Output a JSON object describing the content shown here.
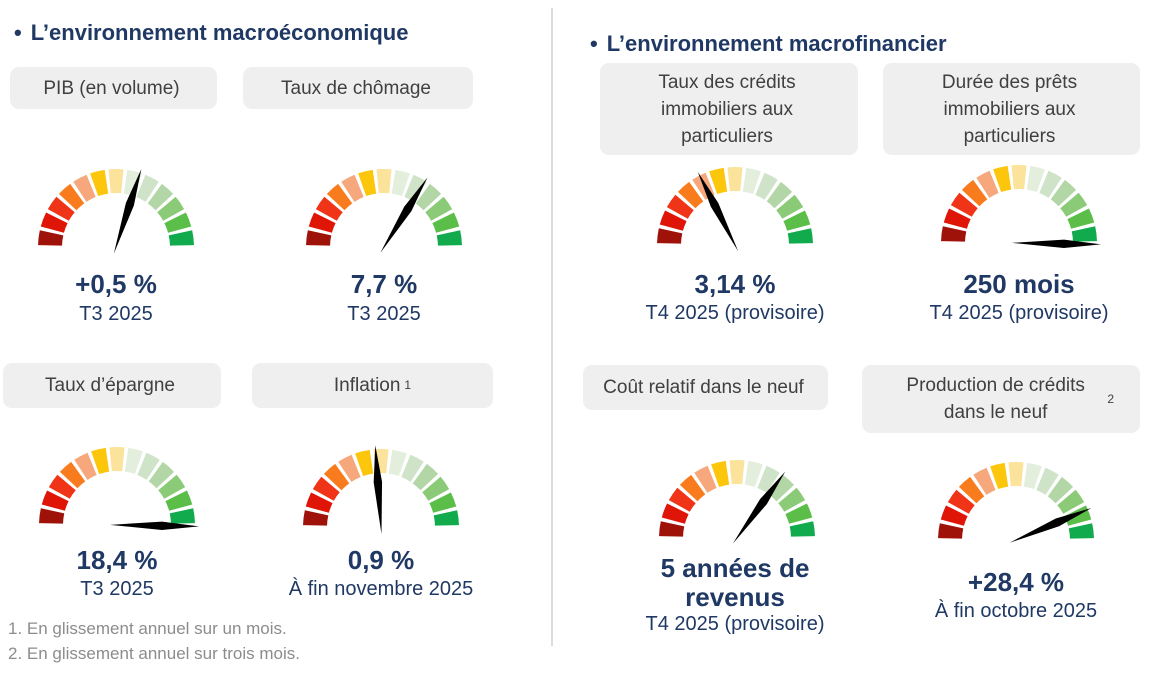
{
  "sections": [
    {
      "bullet": "•",
      "title": "L’environnement macroéconomique",
      "gauges": [
        {
          "label": "PIB (en volume)",
          "value": "+0,5 %",
          "period": "T3 2025",
          "needle_deg": 18
        },
        {
          "label": "Taux de chômage",
          "value": "7,7 %",
          "period": "T3 2025",
          "needle_deg": 32
        },
        {
          "label": "Taux d’épargne",
          "value": "18,4 %",
          "period": "T3 2025",
          "needle_deg": 91
        },
        {
          "label": "Inflation",
          "label_sup": "1",
          "value": "0,9 %",
          "period": "À fin novembre 2025",
          "needle_deg": -4
        }
      ]
    },
    {
      "bullet": "•",
      "title": "L’environnement macrofinancier",
      "gauges": [
        {
          "label": "Taux des crédits immobiliers aux particuliers",
          "value": "3,14 %",
          "period": "T4 2025 (provisoire)",
          "needle_deg": -27
        },
        {
          "label": "Durée des prêts immobiliers aux particuliers",
          "value": "250 mois",
          "period": "T4 2025 (provisoire)",
          "needle_deg": 91
        },
        {
          "label": "Coût relatif dans le neuf",
          "value": "5 années de revenus",
          "period": "T4 2025 (provisoire)",
          "needle_deg": 36
        },
        {
          "label": "Production de crédits dans le neuf",
          "label_sup": "2",
          "value": "+28,4 %",
          "period": "À fin octobre 2025",
          "needle_deg": 67
        }
      ]
    }
  ],
  "footnotes": [
    "1. En glissement annuel sur un mois.",
    "2. En glissement annuel sur trois mois."
  ],
  "gauge_palette": [
    "#9f1209",
    "#df1607",
    "#f03417",
    "#f87c1d",
    "#f6a87c",
    "#fcc60d",
    "#fbe39c",
    "#e3eedd",
    "#cfe3c8",
    "#b3d6a6",
    "#8bca77",
    "#5abe49",
    "#11aa4d"
  ],
  "colors": {
    "title": "#1f3864",
    "value_text": "#1f3864",
    "label_text": "#404040",
    "label_bg": "#efefef",
    "footnote": "#8c8c8c",
    "divider": "#dcdcdc",
    "needle": "#000000"
  },
  "chart_data": {
    "type": "gauge",
    "scale": "semicircular 13-segment dial from red (left, unfavorable) to green (right, favorable); needle_pct 0 = far left, 100 = far right",
    "groups": [
      {
        "title": "L’environnement macroéconomique",
        "gauges": [
          {
            "label": "PIB (en volume)",
            "value": "+0,5 %",
            "period": "T3 2025",
            "needle_pct": 60
          },
          {
            "label": "Taux de chômage",
            "value": "7,7 %",
            "period": "T3 2025",
            "needle_pct": 68
          },
          {
            "label": "Taux d’épargne",
            "value": "18,4 %",
            "period": "T3 2025",
            "needle_pct": 100
          },
          {
            "label": "Inflation (1)",
            "value": "0,9 %",
            "period": "À fin novembre 2025",
            "needle_pct": 48
          }
        ]
      },
      {
        "title": "L’environnement macrofinancier",
        "gauges": [
          {
            "label": "Taux des crédits immobiliers aux particuliers",
            "value": "3,14 %",
            "period": "T4 2025 (provisoire)",
            "needle_pct": 35
          },
          {
            "label": "Durée des prêts immobiliers aux particuliers",
            "value": "250 mois",
            "period": "T4 2025 (provisoire)",
            "needle_pct": 100
          },
          {
            "label": "Coût relatif dans le neuf",
            "value": "5 années de revenus",
            "period": "T4 2025 (provisoire)",
            "needle_pct": 70
          },
          {
            "label": "Production de crédits dans le neuf (2)",
            "value": "+28,4 %",
            "period": "À fin octobre 2025",
            "needle_pct": 87
          }
        ]
      }
    ]
  }
}
